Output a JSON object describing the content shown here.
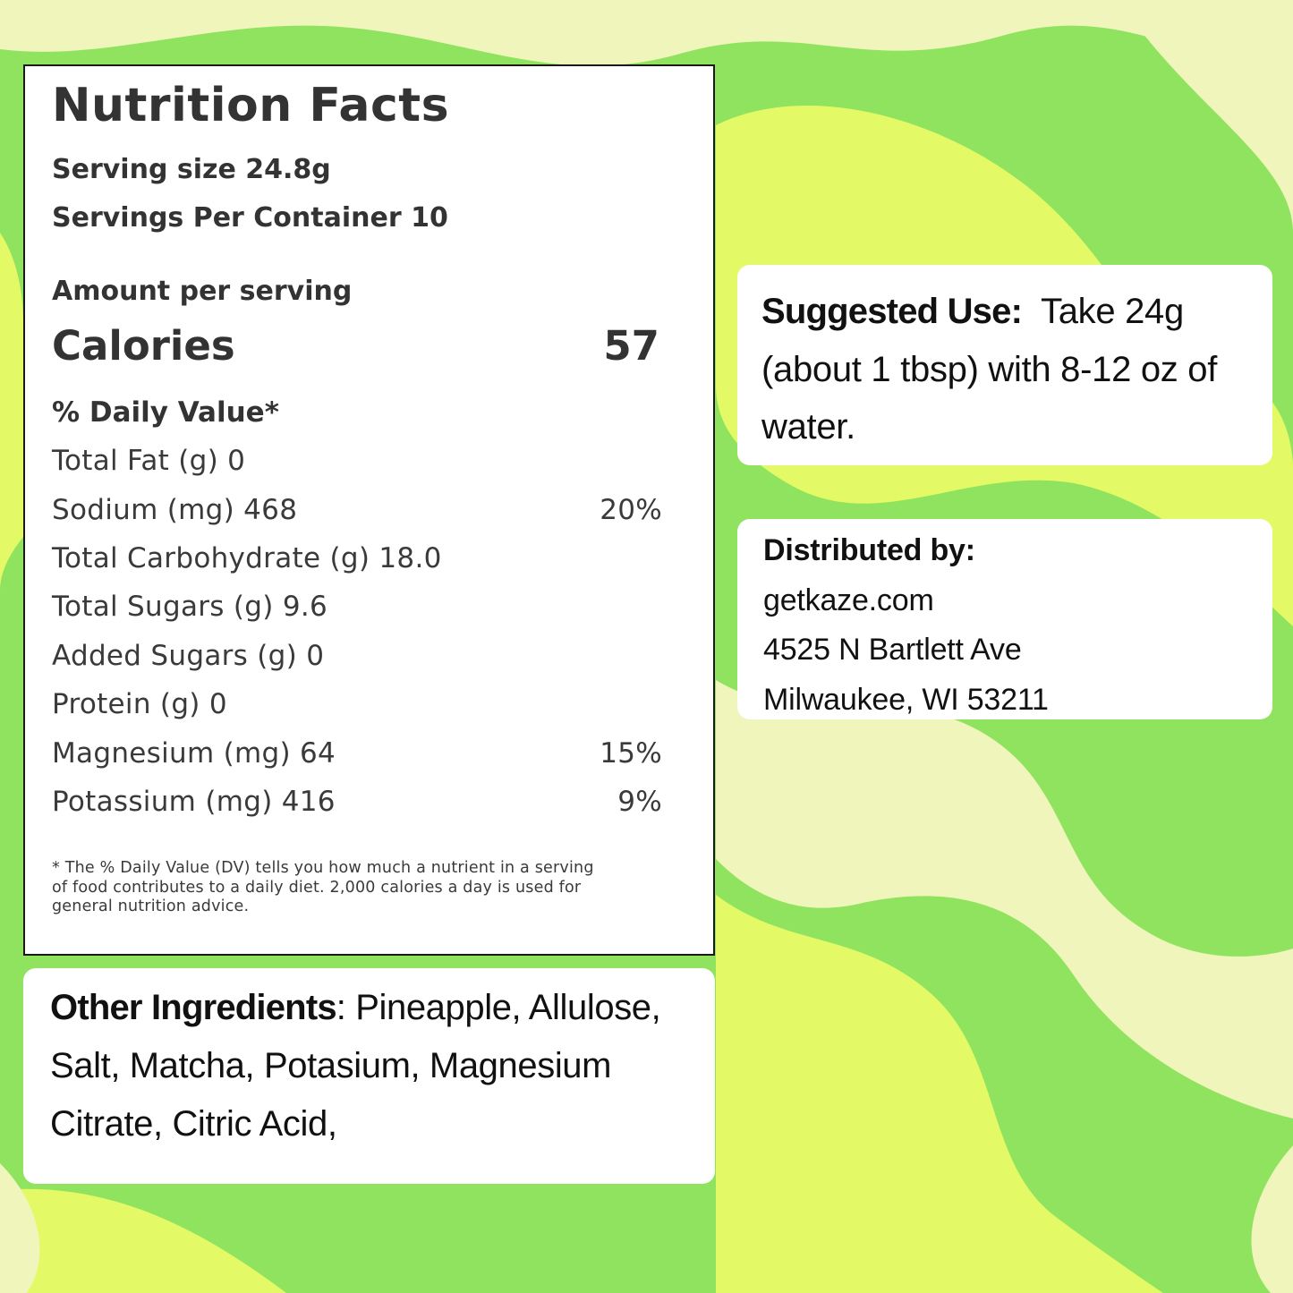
{
  "colors": {
    "background_green": "#8fe35e",
    "wave_yellow": "#e3fa66",
    "wave_cream": "#f0f5bb",
    "panel_white": "#ffffff",
    "label_text": "#333333"
  },
  "nutrition": {
    "title": "Nutrition Facts",
    "serving_size": "Serving size 24.8g",
    "servings_per_container": "Servings Per Container 10",
    "amount_per_serving": "Amount per serving",
    "calories_label": "Calories",
    "calories_value": "57",
    "daily_value_header": "% Daily Value*",
    "rows": [
      {
        "label": "Total Fat (g) 0",
        "dv": ""
      },
      {
        "label": "Sodium (mg) 468",
        "dv": "20%"
      },
      {
        "label": "Total Carbohydrate (g) 18.0",
        "dv": ""
      },
      {
        "label": "Total Sugars (g) 9.6",
        "dv": ""
      },
      {
        "label": "Added Sugars (g) 0",
        "dv": ""
      },
      {
        "label": "Protein (g) 0",
        "dv": ""
      },
      {
        "label": "Magnesium (mg) 64",
        "dv": "15%"
      },
      {
        "label": "Potassium (mg) 416",
        "dv": "9%"
      }
    ],
    "footnote": "* The % Daily Value (DV) tells you how much a nutrient in a serving of food contributes to a daily diet. 2,000 calories a day is used for general nutrition advice."
  },
  "suggested_use": {
    "label": "Suggested Use:",
    "text": "Take 24g (about 1 tbsp) with 8-12 oz of water."
  },
  "distributed_by": {
    "label": "Distributed by:",
    "website": "getkaze.com",
    "street": "4525 N Bartlett Ave",
    "city": "Milwaukee, WI 53211"
  },
  "ingredients": {
    "label": "Other Ingredients",
    "text": "Pineapple, Allulose, Salt, Matcha, Potasium, Magnesium Citrate, Citric Acid,"
  }
}
